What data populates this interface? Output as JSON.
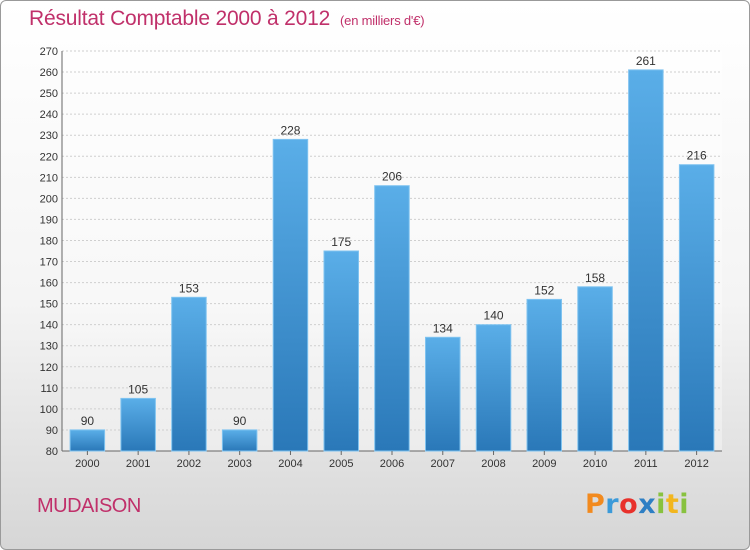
{
  "header": {
    "title": "Résultat Comptable 2000 à 2012",
    "subtitle": "(en milliers d'€)"
  },
  "footer": {
    "place": "MUDAISON",
    "logo_letters": [
      "P",
      "r",
      "o",
      "x",
      "i",
      "t",
      "i"
    ]
  },
  "colors": {
    "bar_top": "#5aaee8",
    "bar_bottom": "#2a78b8",
    "grid": "#cfcfcf",
    "title": "#c0306a"
  },
  "chart_data": {
    "type": "bar",
    "title": "Résultat Comptable 2000 à 2012",
    "subtitle": "(en milliers d'€)",
    "xlabel": "",
    "ylabel": "",
    "categories": [
      "2000",
      "2001",
      "2002",
      "2003",
      "2004",
      "2005",
      "2006",
      "2007",
      "2008",
      "2009",
      "2010",
      "2011",
      "2012"
    ],
    "values": [
      90,
      105,
      153,
      90,
      228,
      175,
      206,
      134,
      140,
      152,
      158,
      261,
      216
    ],
    "ylim": [
      80,
      270
    ],
    "ytick_step": 10,
    "grid": true,
    "legend": "none"
  }
}
